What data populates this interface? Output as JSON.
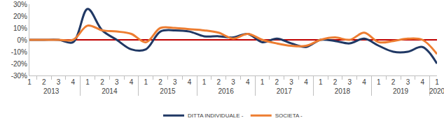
{
  "chart_data": {
    "type": "line",
    "categories": [
      [
        "2013",
        "1"
      ],
      [
        "2013",
        "2"
      ],
      [
        "2013",
        "3"
      ],
      [
        "2013",
        "4"
      ],
      [
        "2014",
        "1"
      ],
      [
        "2014",
        "2"
      ],
      [
        "2014",
        "3"
      ],
      [
        "2014",
        "4"
      ],
      [
        "2015",
        "1"
      ],
      [
        "2015",
        "2"
      ],
      [
        "2015",
        "3"
      ],
      [
        "2015",
        "4"
      ],
      [
        "2016",
        "1"
      ],
      [
        "2016",
        "2"
      ],
      [
        "2016",
        "3"
      ],
      [
        "2016",
        "4"
      ],
      [
        "2017",
        "1"
      ],
      [
        "2017",
        "2"
      ],
      [
        "2017",
        "3"
      ],
      [
        "2017",
        "4"
      ],
      [
        "2018",
        "1"
      ],
      [
        "2018",
        "2"
      ],
      [
        "2018",
        "3"
      ],
      [
        "2018",
        "4"
      ],
      [
        "2019",
        "1"
      ],
      [
        "2019",
        "2"
      ],
      [
        "2019",
        "3"
      ],
      [
        "2019",
        "4"
      ],
      [
        "2020",
        "1"
      ]
    ],
    "series": [
      {
        "name": "DITTA INDIVIDUALE -",
        "color": "#203864",
        "line_style": "smooth",
        "values": [
          0,
          0,
          0,
          -2,
          26,
          8,
          0,
          -8,
          -8,
          7,
          8,
          7,
          3,
          3,
          2,
          5,
          -2,
          1,
          -3,
          -6,
          0,
          -1,
          -3,
          1,
          -5,
          -10,
          -10,
          -6,
          -20
        ]
      },
      {
        "name": "SOCIETA -",
        "color": "#ed7d31",
        "line_style": "smooth",
        "values": [
          0,
          0,
          0,
          0,
          12,
          8,
          7,
          5,
          -2,
          10,
          10,
          9,
          8,
          6,
          1,
          5,
          0,
          -3,
          -5,
          -5,
          0,
          2,
          0,
          6,
          -2,
          -1,
          1,
          0,
          -12
        ]
      }
    ],
    "ylim": [
      -30,
      30
    ],
    "yticks": [
      {
        "value": -30,
        "label": "-30%"
      },
      {
        "value": -20,
        "label": "-20%"
      },
      {
        "value": -10,
        "label": "-10%"
      },
      {
        "value": 0,
        "label": "0%"
      },
      {
        "value": 10,
        "label": "10%"
      },
      {
        "value": 20,
        "label": "20%"
      },
      {
        "value": 30,
        "label": "30%"
      }
    ],
    "grid": false,
    "legend": "bottom"
  }
}
